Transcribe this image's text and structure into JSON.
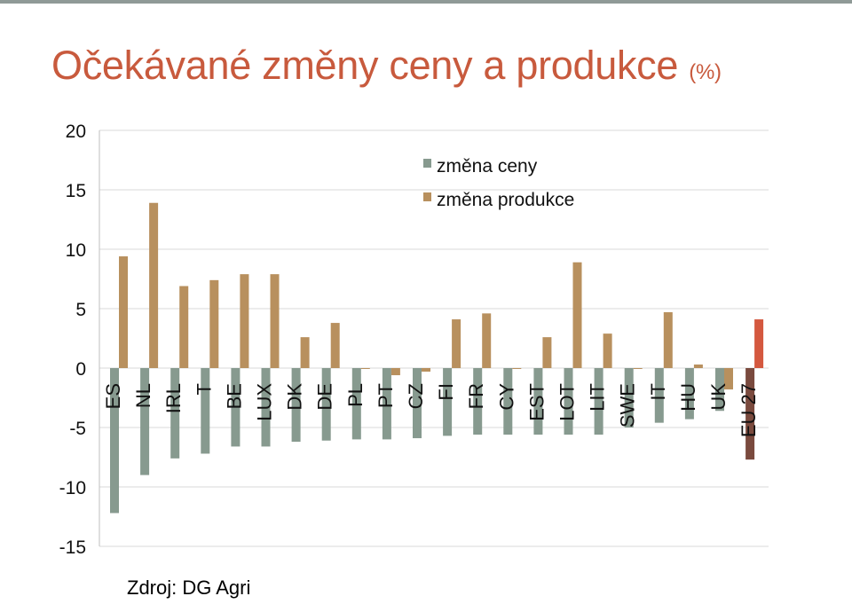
{
  "title": "Očekávané změny ceny a produkce",
  "title_unit": "(%)",
  "source": "Zdroj: DG Agri",
  "colors": {
    "title": "#c85a3d",
    "price": "#879a8f",
    "production": "#b8905e",
    "eu_price": "#7a4a3e",
    "eu_production": "#d4583f",
    "grid": "#d9d9d9"
  },
  "chart_data": {
    "type": "bar",
    "categories": [
      "ES",
      "NL",
      "IRL",
      "T",
      "BE",
      "LUX",
      "DK",
      "DE",
      "PL",
      "PT",
      "CZ",
      "FI",
      "FR",
      "CY",
      "EST",
      "LOT",
      "LIT",
      "SWE",
      "IT",
      "HU",
      "UK",
      "EU 27"
    ],
    "series": [
      {
        "name": "změna ceny",
        "values": [
          -12.2,
          -9.0,
          -7.6,
          -7.2,
          -6.6,
          -6.6,
          -6.2,
          -6.1,
          -6.0,
          -6.0,
          -5.9,
          -5.7,
          -5.6,
          -5.6,
          -5.6,
          -5.6,
          -5.6,
          -5.0,
          -4.6,
          -4.3,
          -3.6,
          -7.7
        ]
      },
      {
        "name": "změna produkce",
        "values": [
          9.4,
          13.9,
          6.9,
          7.4,
          7.9,
          7.9,
          2.6,
          3.8,
          0.0,
          -0.6,
          -0.3,
          4.1,
          4.6,
          0.0,
          2.6,
          8.9,
          2.9,
          0.0,
          4.7,
          0.3,
          -1.8,
          4.1
        ]
      }
    ],
    "yticks": [
      20,
      15,
      10,
      5,
      0,
      -5,
      -10,
      -15
    ],
    "ylim": [
      -15,
      20
    ],
    "grid": true,
    "legend_position": "top-center"
  }
}
